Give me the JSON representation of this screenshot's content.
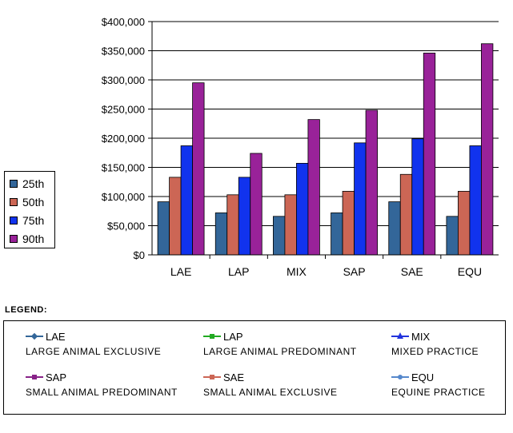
{
  "chart_data": {
    "type": "bar",
    "categories": [
      "LAE",
      "LAP",
      "MIX",
      "SAP",
      "SAE",
      "EQU"
    ],
    "series": [
      {
        "name": "25th",
        "color": "#336699",
        "values": [
          91000,
          72000,
          66000,
          72000,
          91000,
          66000
        ]
      },
      {
        "name": "50th",
        "color": "#CC6655",
        "values": [
          133000,
          103000,
          103000,
          109000,
          138000,
          109000
        ]
      },
      {
        "name": "75th",
        "color": "#1133EE",
        "values": [
          187000,
          133000,
          157000,
          192000,
          199000,
          187000
        ]
      },
      {
        "name": "90th",
        "color": "#992299",
        "values": [
          295000,
          174000,
          232000,
          248000,
          346000,
          362000
        ]
      }
    ],
    "ylim": [
      0,
      400000
    ],
    "yticks": [
      "$0",
      "$50,000",
      "$100,000",
      "$150,000",
      "$200,000",
      "$250,000",
      "$300,000",
      "$350,000",
      "$400,000"
    ],
    "grid": true,
    "legend": "left"
  },
  "legend": {
    "heading": "LEGEND:",
    "items": [
      {
        "code": "LAE",
        "description": "LARGE ANIMAL EXCLUSIVE",
        "color": "#336699",
        "marker": "diamond"
      },
      {
        "code": "LAP",
        "description": "LARGE ANIMAL PREDOMINANT",
        "color": "#22AA22",
        "marker": "square"
      },
      {
        "code": "MIX",
        "description": "MIXED PRACTICE",
        "color": "#2233DD",
        "marker": "triangle"
      },
      {
        "code": "SAP",
        "description": "SMALL ANIMAL PREDOMINANT",
        "color": "#882288",
        "marker": "square"
      },
      {
        "code": "SAE",
        "description": "SMALL ANIMAL EXCLUSIVE",
        "color": "#CC6655",
        "marker": "square"
      },
      {
        "code": "EQU",
        "description": "EQUINE PRACTICE",
        "color": "#5588CC",
        "marker": "circle"
      }
    ]
  }
}
